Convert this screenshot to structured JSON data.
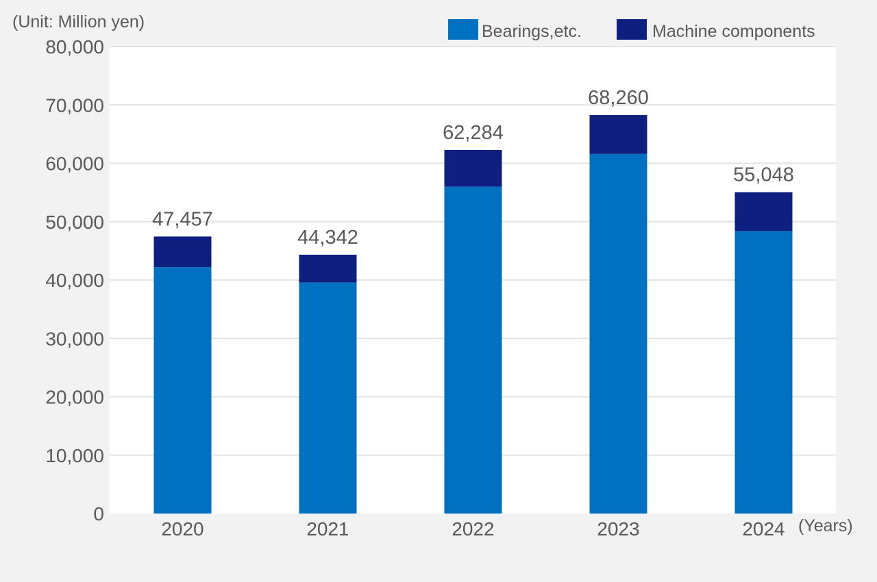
{
  "chart_data": {
    "type": "bar",
    "stacked": true,
    "y_unit_label": "(Unit: Million yen)",
    "x_unit_label": "(Years)",
    "title": "",
    "xlabel": "",
    "ylabel": "",
    "categories": [
      "2020",
      "2021",
      "2022",
      "2023",
      "2024"
    ],
    "series": [
      {
        "name": "Bearings,etc.",
        "values": [
          42200,
          39600,
          56000,
          61600,
          48400
        ],
        "color": "#0070c0"
      },
      {
        "name": "Machine components",
        "values": [
          5257,
          4742,
          6284,
          6660,
          6648
        ],
        "color": "#0f1f80"
      }
    ],
    "totals": [
      "47,457",
      "44,342",
      "62,284",
      "68,260",
      "55,048"
    ],
    "y_ticks": [
      "0",
      "10,000",
      "20,000",
      "30,000",
      "40,000",
      "50,000",
      "60,000",
      "70,000",
      "80,000"
    ],
    "ylim": [
      0,
      80000
    ],
    "grid": true,
    "legend_position": "top-right"
  }
}
